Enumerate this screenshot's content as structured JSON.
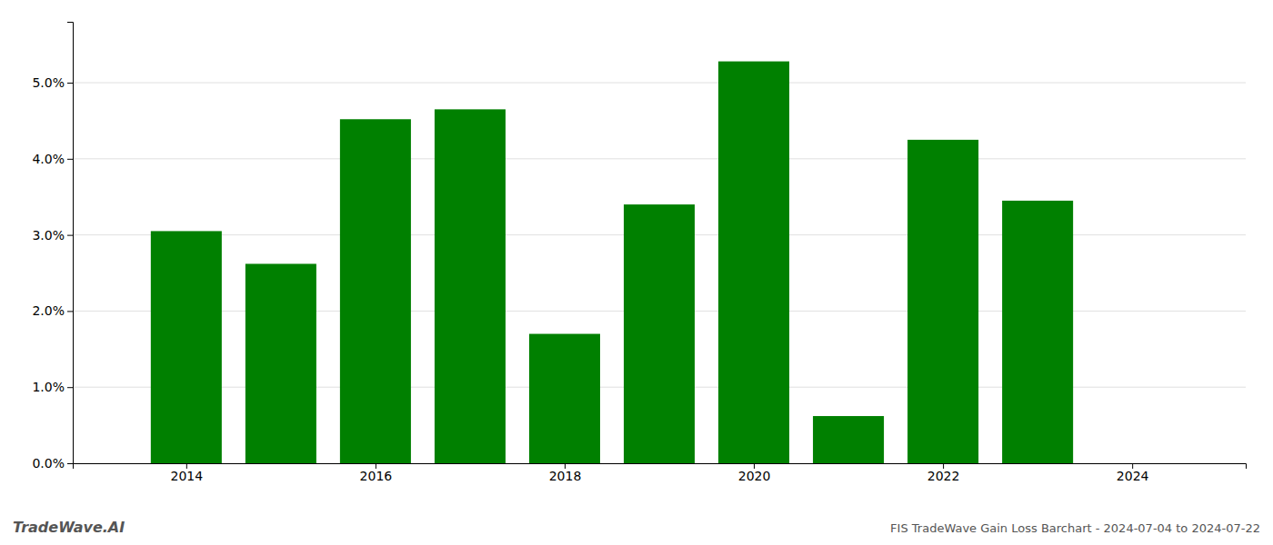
{
  "chart_data": {
    "type": "bar",
    "x": [
      2014,
      2015,
      2016,
      2017,
      2018,
      2019,
      2020,
      2021,
      2022,
      2023
    ],
    "values": [
      0.0305,
      0.0262,
      0.0452,
      0.0465,
      0.017,
      0.034,
      0.0528,
      0.0062,
      0.0425,
      0.0345
    ],
    "color": "#008000",
    "xlim": [
      2012.8,
      2025.2
    ],
    "xticks": [
      2014,
      2016,
      2018,
      2020,
      2022,
      2024
    ],
    "ylim": [
      0,
      0.058
    ],
    "yticks": [
      {
        "value": 0.0,
        "label": "0.0%"
      },
      {
        "value": 0.01,
        "label": "1.0%"
      },
      {
        "value": 0.02,
        "label": "2.0%"
      },
      {
        "value": 0.03,
        "label": "3.0%"
      },
      {
        "value": 0.04,
        "label": "4.0%"
      },
      {
        "value": 0.05,
        "label": "5.0%"
      }
    ],
    "grid": true,
    "annotations": [
      "TradeWave.AI",
      "FIS TradeWave Gain Loss Barchart - 2024-07-04 to 2024-07-22"
    ]
  }
}
